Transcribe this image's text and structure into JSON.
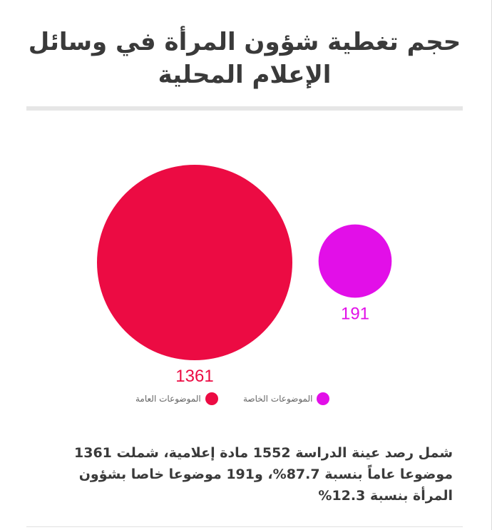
{
  "title": "حجم تغطية شؤون المرأة في وسائل الإعلام المحلية",
  "chart_data": {
    "type": "bubble",
    "categories": [
      "الموضوعات العامة",
      "الموضوعات الخاصة"
    ],
    "values": [
      1361,
      191
    ],
    "value_labels": [
      "1361",
      "191"
    ],
    "colors": [
      "#ec0b43",
      "#e20fe8"
    ],
    "legend": [
      "الموضوعات العامة",
      "الموضوعات الخاصة"
    ],
    "legend_position": "bottom"
  },
  "summary": "شمل رصد عينة الدراسة 1552 مادة إعلامية، شملت 1361 موضوعا عاماً بنسبة 87.7%، و191 موضوعا خاصا بشؤون المرأة بنسبة 12.3%"
}
